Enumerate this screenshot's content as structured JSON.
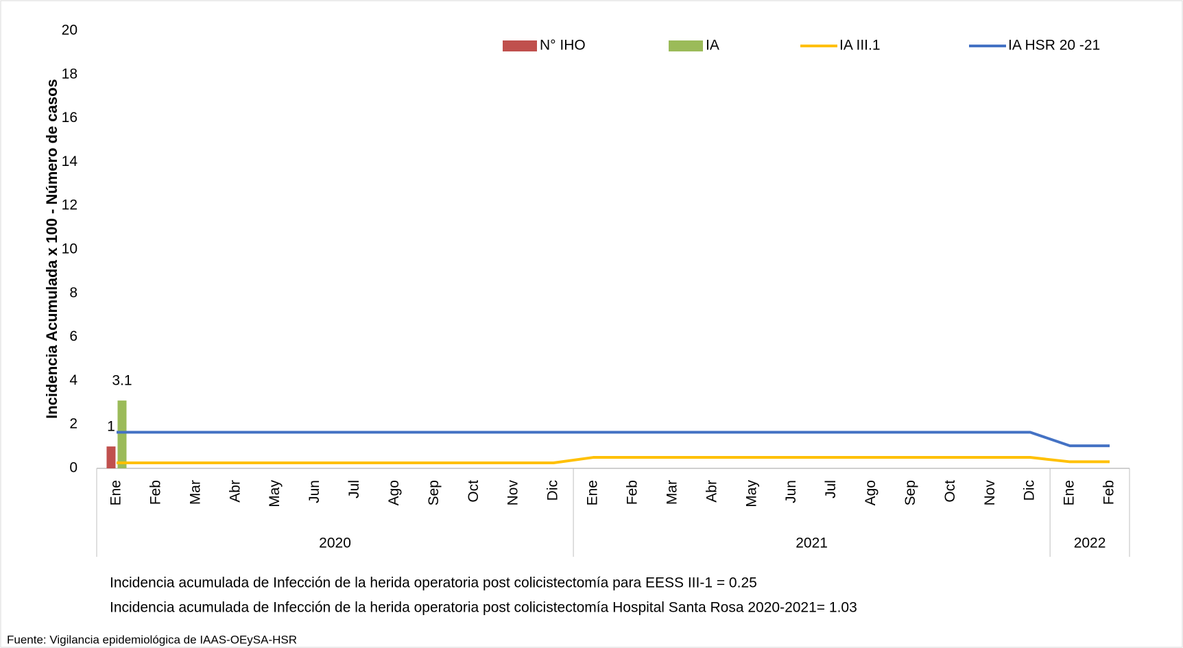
{
  "chart_data": {
    "type": "combo",
    "y_label": "Incidencia Acumulada x 100 - Número de casos",
    "ylim": [
      0,
      20
    ],
    "yticks": [
      0,
      2,
      4,
      6,
      8,
      10,
      12,
      14,
      16,
      18,
      20
    ],
    "grid": false,
    "groups": [
      {
        "label": "2020",
        "categories": [
          "Ene",
          "Feb",
          "Mar",
          "Abr",
          "May",
          "Jun",
          "Jul",
          "Ago",
          "Sep",
          "Oct",
          "Nov",
          "Dic"
        ]
      },
      {
        "label": "2021",
        "categories": [
          "Ene",
          "Feb",
          "Mar",
          "Abr",
          "May",
          "Jun",
          "Jul",
          "Ago",
          "Sep",
          "Oct",
          "Nov",
          "Dic"
        ]
      },
      {
        "label": "2022",
        "categories": [
          "Ene",
          "Feb"
        ]
      }
    ],
    "series": [
      {
        "name": "N° IHO",
        "kind": "bar",
        "color": "#c0504d",
        "data_labels": true,
        "values": [
          1,
          null,
          null,
          null,
          null,
          null,
          null,
          null,
          null,
          null,
          null,
          null,
          null,
          null,
          null,
          null,
          null,
          null,
          null,
          null,
          null,
          null,
          null,
          null,
          null,
          null
        ]
      },
      {
        "name": "IA",
        "kind": "bar",
        "color": "#9bbb59",
        "data_labels": true,
        "values": [
          3.1,
          null,
          null,
          null,
          null,
          null,
          null,
          null,
          null,
          null,
          null,
          null,
          null,
          null,
          null,
          null,
          null,
          null,
          null,
          null,
          null,
          null,
          null,
          null,
          null,
          null
        ]
      },
      {
        "name": "IA  III.1",
        "kind": "line",
        "color": "#ffc000",
        "values": [
          0.25,
          0.25,
          0.25,
          0.25,
          0.25,
          0.25,
          0.25,
          0.25,
          0.25,
          0.25,
          0.25,
          0.25,
          0.5,
          0.5,
          0.5,
          0.5,
          0.5,
          0.5,
          0.5,
          0.5,
          0.5,
          0.5,
          0.5,
          0.5,
          0.3,
          0.3
        ]
      },
      {
        "name": "IA  HSR 20 -21",
        "kind": "line",
        "color": "#4472c4",
        "values": [
          1.65,
          1.65,
          1.65,
          1.65,
          1.65,
          1.65,
          1.65,
          1.65,
          1.65,
          1.65,
          1.65,
          1.65,
          1.65,
          1.65,
          1.65,
          1.65,
          1.65,
          1.65,
          1.65,
          1.65,
          1.65,
          1.65,
          1.65,
          1.65,
          1.03,
          1.03
        ]
      }
    ],
    "notes": [
      "Incidencia acumulada de Infección de la herida operatoria post colicistectomía para EESS III-1 = 0.25",
      "Incidencia acumulada de Infección de la herida operatoria post colicistectomía Hospital Santa Rosa 2020-2021= 1.03"
    ],
    "source": "Fuente: Vigilancia epidemiológica de IAAS-OEySA-HSR"
  }
}
